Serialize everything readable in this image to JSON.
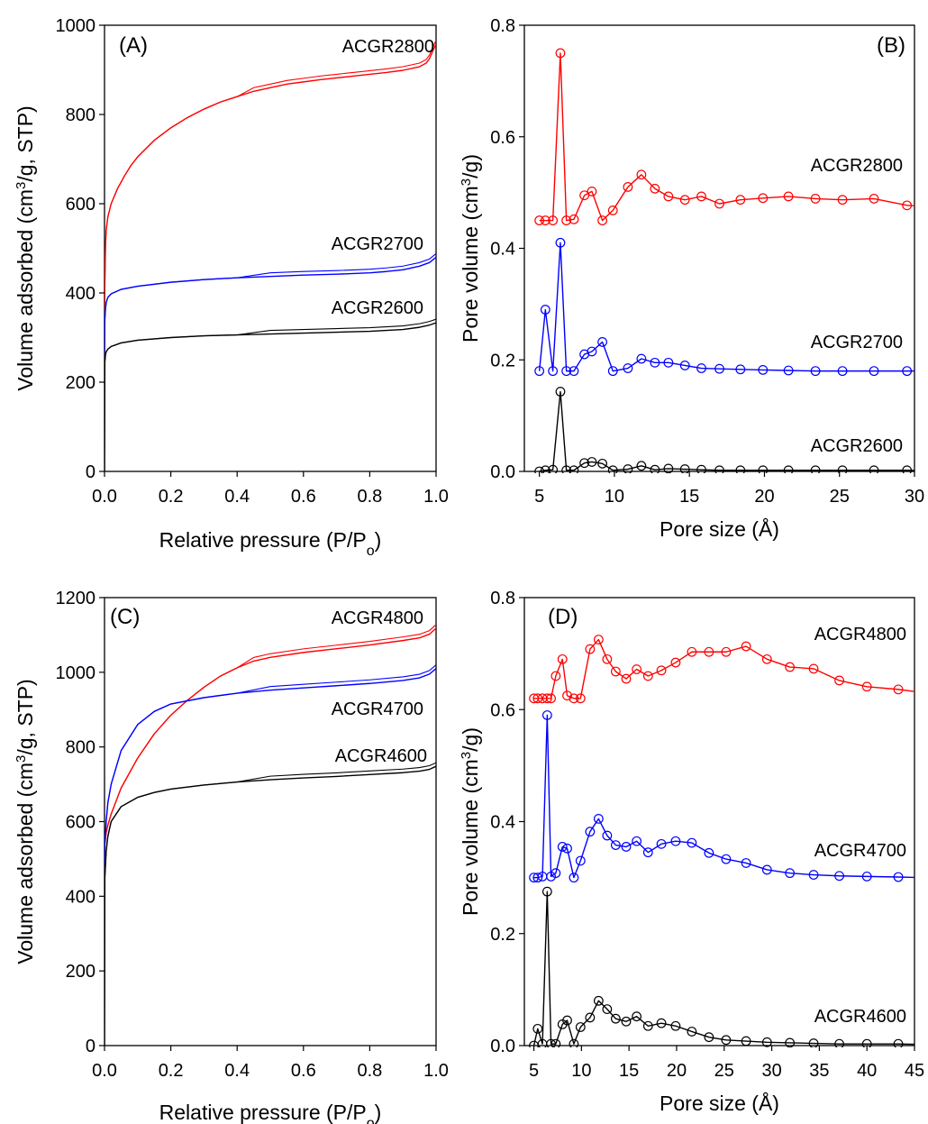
{
  "chart_data": [
    {
      "type": "line",
      "panel_label": "(A)",
      "xlabel": "Relative pressure (P/Po)",
      "ylabel": "Volume adsorbed (cm3/g, STP)",
      "xlim": [
        0,
        1.0
      ],
      "ylim": [
        0,
        1000
      ],
      "xticks": [
        0.0,
        0.2,
        0.4,
        0.6,
        0.8,
        1.0
      ],
      "xtick_labels": [
        "0.0",
        "0.2",
        "0.4",
        "0.6",
        "0.8",
        "1.0"
      ],
      "yticks": [
        0,
        200,
        400,
        600,
        800,
        1000
      ],
      "ytick_labels": [
        "0",
        "200",
        "400",
        "600",
        "800",
        "1000"
      ],
      "series": [
        {
          "name": "ACGR2800",
          "color": "#ff0000",
          "x": [
            0,
            0.001,
            0.003,
            0.005,
            0.01,
            0.02,
            0.04,
            0.06,
            0.08,
            0.1,
            0.15,
            0.2,
            0.25,
            0.3,
            0.35,
            0.4,
            0.45,
            0.5,
            0.55,
            0.6,
            0.65,
            0.7,
            0.75,
            0.8,
            0.85,
            0.9,
            0.95,
            0.97,
            0.98,
            0.99,
            1.0
          ],
          "y": [
            250,
            420,
            505,
            540,
            570,
            600,
            635,
            662,
            686,
            705,
            742,
            770,
            793,
            812,
            828,
            840,
            852,
            860,
            868,
            873,
            878,
            882,
            886,
            890,
            894,
            899,
            907,
            915,
            925,
            942,
            958
          ]
        },
        {
          "name": "ACGR2700",
          "color": "#0000ff",
          "x": [
            0,
            0.001,
            0.003,
            0.005,
            0.01,
            0.02,
            0.05,
            0.1,
            0.2,
            0.3,
            0.4,
            0.5,
            0.6,
            0.7,
            0.8,
            0.85,
            0.9,
            0.95,
            0.98,
            1.0
          ],
          "y": [
            250,
            340,
            365,
            378,
            390,
            398,
            408,
            415,
            424,
            430,
            434,
            437,
            440,
            442,
            445,
            448,
            452,
            460,
            468,
            480
          ]
        },
        {
          "name": "ACGR2600",
          "color": "#000000",
          "x": [
            0,
            0.001,
            0.003,
            0.005,
            0.01,
            0.02,
            0.05,
            0.1,
            0.2,
            0.3,
            0.4,
            0.5,
            0.6,
            0.7,
            0.8,
            0.9,
            0.95,
            0.98,
            1.0
          ],
          "y": [
            0,
            245,
            262,
            268,
            274,
            280,
            288,
            294,
            300,
            304,
            306,
            308,
            310,
            312,
            314,
            318,
            323,
            328,
            333
          ]
        }
      ]
    },
    {
      "type": "line",
      "panel_label": "(B)",
      "xlabel": "Pore size (Å)",
      "ylabel": "Pore volume (cm3/g)",
      "xlim": [
        4,
        30
      ],
      "ylim": [
        0,
        0.8
      ],
      "xticks": [
        5,
        10,
        15,
        20,
        25,
        30
      ],
      "xtick_labels": [
        "5",
        "10",
        "15",
        "20",
        "25",
        "30"
      ],
      "yticks": [
        0.0,
        0.2,
        0.4,
        0.6,
        0.8
      ],
      "ytick_labels": [
        "0.0",
        "0.2",
        "0.4",
        "0.6",
        "0.8"
      ],
      "series": [
        {
          "name": "ACGR2800",
          "color": "#ff0000",
          "x": [
            5.0,
            5.4,
            5.9,
            6.4,
            6.8,
            7.3,
            8.0,
            8.5,
            9.2,
            9.9,
            10.9,
            11.8,
            12.7,
            13.6,
            14.7,
            15.8,
            17.0,
            18.4,
            19.9,
            21.6,
            23.4,
            25.2,
            27.3,
            29.5,
            31.0
          ],
          "y": [
            0.45,
            0.45,
            0.45,
            0.75,
            0.45,
            0.452,
            0.495,
            0.502,
            0.45,
            0.468,
            0.51,
            0.532,
            0.507,
            0.493,
            0.487,
            0.493,
            0.48,
            0.487,
            0.49,
            0.493,
            0.489,
            0.487,
            0.489,
            0.477,
            0.475
          ]
        },
        {
          "name": "ACGR2700",
          "color": "#0000ff",
          "x": [
            5.0,
            5.4,
            5.9,
            6.4,
            6.8,
            7.3,
            8.0,
            8.5,
            9.2,
            9.9,
            10.9,
            11.8,
            12.7,
            13.6,
            14.7,
            15.8,
            17.0,
            18.4,
            19.9,
            21.6,
            23.4,
            25.2,
            27.3,
            29.5,
            31.0
          ],
          "y": [
            0.18,
            0.29,
            0.18,
            0.41,
            0.18,
            0.18,
            0.21,
            0.215,
            0.232,
            0.18,
            0.185,
            0.202,
            0.195,
            0.195,
            0.19,
            0.185,
            0.184,
            0.183,
            0.182,
            0.181,
            0.18,
            0.18,
            0.18,
            0.18,
            0.18
          ]
        },
        {
          "name": "ACGR2600",
          "color": "#000000",
          "x": [
            5.0,
            5.4,
            5.9,
            6.4,
            6.8,
            7.3,
            8.0,
            8.5,
            9.2,
            9.9,
            10.9,
            11.8,
            12.7,
            13.6,
            14.7,
            15.8,
            17.0,
            18.4,
            19.9,
            21.6,
            23.4,
            25.2,
            27.3,
            29.5,
            31.0
          ],
          "y": [
            0.0,
            0.002,
            0.003,
            0.143,
            0.002,
            0.002,
            0.015,
            0.017,
            0.014,
            0.002,
            0.004,
            0.01,
            0.003,
            0.005,
            0.004,
            0.003,
            0.002,
            0.002,
            0.002,
            0.002,
            0.002,
            0.002,
            0.002,
            0.002,
            0.001
          ]
        }
      ]
    },
    {
      "type": "line",
      "panel_label": "(C)",
      "xlabel": "Relative pressure (P/Po)",
      "ylabel": "Volume adsorbed (cm3/g, STP)",
      "xlim": [
        0,
        1.0
      ],
      "ylim": [
        0,
        1200
      ],
      "xticks": [
        0.0,
        0.2,
        0.4,
        0.6,
        0.8,
        1.0
      ],
      "xtick_labels": [
        "0.0",
        "0.2",
        "0.4",
        "0.6",
        "0.8",
        "1.0"
      ],
      "yticks": [
        0,
        200,
        400,
        600,
        800,
        1000,
        1200
      ],
      "ytick_labels": [
        "0",
        "200",
        "400",
        "600",
        "800",
        "1000",
        "1200"
      ],
      "series": [
        {
          "name": "ACGR4800",
          "color": "#ff0000",
          "x": [
            0,
            0.001,
            0.005,
            0.01,
            0.02,
            0.05,
            0.1,
            0.15,
            0.2,
            0.25,
            0.3,
            0.35,
            0.4,
            0.45,
            0.5,
            0.6,
            0.7,
            0.8,
            0.9,
            0.95,
            0.98,
            1.0
          ],
          "y": [
            430,
            540,
            570,
            590,
            620,
            690,
            770,
            835,
            885,
            925,
            960,
            990,
            1012,
            1030,
            1040,
            1053,
            1063,
            1073,
            1085,
            1092,
            1102,
            1118
          ]
        },
        {
          "name": "ACGR4700",
          "color": "#0000ff",
          "x": [
            0,
            0.001,
            0.005,
            0.01,
            0.02,
            0.05,
            0.1,
            0.15,
            0.2,
            0.3,
            0.4,
            0.5,
            0.6,
            0.7,
            0.8,
            0.9,
            0.95,
            0.98,
            1.0
          ],
          "y": [
            430,
            540,
            600,
            650,
            700,
            790,
            860,
            895,
            915,
            932,
            944,
            952,
            958,
            964,
            970,
            978,
            985,
            995,
            1010
          ]
        },
        {
          "name": "ACGR4600",
          "color": "#000000",
          "x": [
            0,
            0.001,
            0.005,
            0.01,
            0.02,
            0.05,
            0.1,
            0.15,
            0.2,
            0.3,
            0.4,
            0.5,
            0.6,
            0.7,
            0.8,
            0.9,
            0.95,
            0.98,
            1.0
          ],
          "y": [
            0,
            450,
            520,
            560,
            600,
            640,
            665,
            678,
            687,
            698,
            706,
            712,
            717,
            721,
            726,
            731,
            735,
            740,
            748
          ]
        }
      ]
    },
    {
      "type": "line",
      "panel_label": "(D)",
      "xlabel": "Pore size (Å)",
      "ylabel": "Pore volume (cm3/g)",
      "xlim": [
        4,
        45
      ],
      "ylim": [
        0,
        0.8
      ],
      "xticks": [
        5,
        10,
        15,
        20,
        25,
        30,
        35,
        40,
        45
      ],
      "xtick_labels": [
        "5",
        "10",
        "15",
        "20",
        "25",
        "30",
        "35",
        "40",
        "45"
      ],
      "yticks": [
        0.0,
        0.2,
        0.4,
        0.6,
        0.8
      ],
      "ytick_labels": [
        "0.0",
        "0.2",
        "0.4",
        "0.6",
        "0.8"
      ],
      "series": [
        {
          "name": "ACGR4800",
          "color": "#ff0000",
          "x": [
            5.0,
            5.4,
            5.9,
            6.4,
            6.8,
            7.3,
            8.0,
            8.5,
            9.2,
            9.9,
            10.9,
            11.8,
            12.7,
            13.6,
            14.7,
            15.8,
            17.0,
            18.4,
            19.9,
            21.6,
            23.4,
            25.2,
            27.3,
            29.5,
            31.9,
            34.4,
            37.1,
            40.0,
            43.3,
            46.0
          ],
          "y": [
            0.62,
            0.62,
            0.62,
            0.62,
            0.62,
            0.66,
            0.69,
            0.625,
            0.62,
            0.62,
            0.708,
            0.725,
            0.69,
            0.668,
            0.655,
            0.672,
            0.66,
            0.67,
            0.684,
            0.703,
            0.703,
            0.703,
            0.713,
            0.69,
            0.676,
            0.673,
            0.652,
            0.641,
            0.636,
            0.63
          ]
        },
        {
          "name": "ACGR4700",
          "color": "#0000ff",
          "x": [
            5.0,
            5.4,
            5.9,
            6.4,
            6.8,
            7.3,
            8.0,
            8.5,
            9.2,
            9.9,
            10.9,
            11.8,
            12.7,
            13.6,
            14.7,
            15.8,
            17.0,
            18.4,
            19.9,
            21.6,
            23.4,
            25.2,
            27.3,
            29.5,
            31.9,
            34.4,
            37.1,
            40.0,
            43.3,
            46.0
          ],
          "y": [
            0.3,
            0.3,
            0.302,
            0.59,
            0.302,
            0.308,
            0.355,
            0.352,
            0.3,
            0.33,
            0.382,
            0.405,
            0.375,
            0.358,
            0.355,
            0.365,
            0.345,
            0.36,
            0.365,
            0.362,
            0.344,
            0.333,
            0.326,
            0.314,
            0.308,
            0.305,
            0.303,
            0.302,
            0.301,
            0.3
          ]
        },
        {
          "name": "ACGR4600",
          "color": "#000000",
          "x": [
            5.0,
            5.4,
            5.9,
            6.4,
            6.8,
            7.3,
            8.0,
            8.5,
            9.2,
            9.9,
            10.9,
            11.8,
            12.7,
            13.6,
            14.7,
            15.8,
            17.0,
            18.4,
            19.9,
            21.6,
            23.4,
            25.2,
            27.3,
            29.5,
            31.9,
            34.4,
            37.1,
            40.0,
            43.3,
            46.0
          ],
          "y": [
            0.0,
            0.03,
            0.003,
            0.275,
            0.003,
            0.003,
            0.038,
            0.045,
            0.003,
            0.033,
            0.05,
            0.08,
            0.065,
            0.048,
            0.043,
            0.052,
            0.035,
            0.04,
            0.035,
            0.025,
            0.015,
            0.01,
            0.008,
            0.006,
            0.005,
            0.004,
            0.003,
            0.003,
            0.003,
            0.002
          ]
        }
      ]
    }
  ]
}
